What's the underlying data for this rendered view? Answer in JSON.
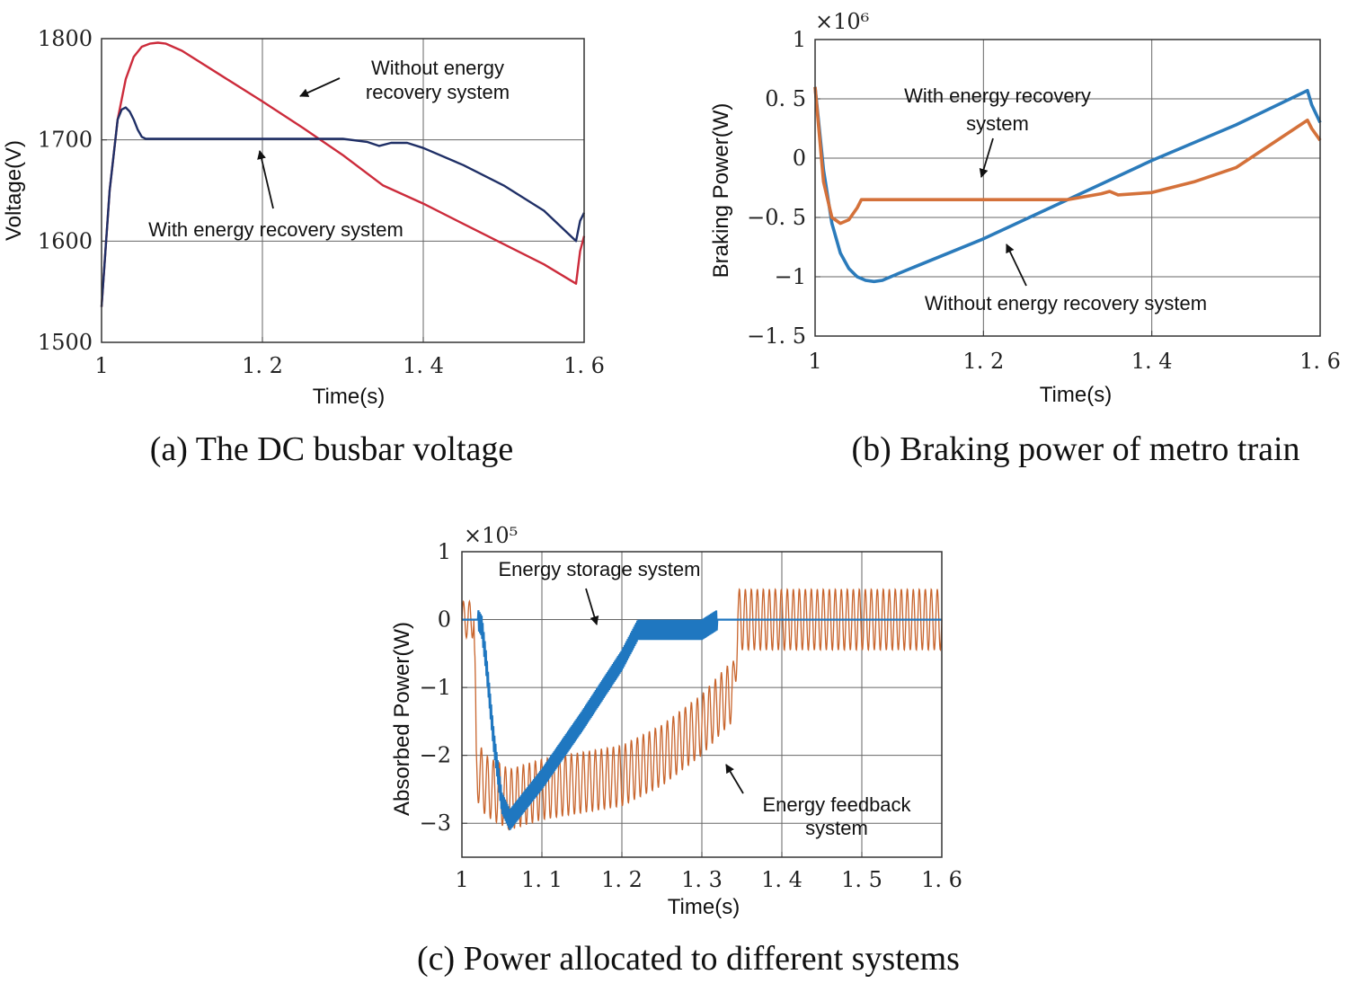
{
  "chart_data": [
    {
      "type": "line",
      "caption": "(a) The DC busbar voltage",
      "xlabel": "Time(s)",
      "ylabel": "Voltage(V)",
      "xlim": [
        1,
        1.6
      ],
      "ylim": [
        1500,
        1800
      ],
      "xticks": [
        1,
        1.2,
        1.4,
        1.6
      ],
      "xtick_labels": [
        "1",
        "1. 2",
        "1. 4",
        "1. 6"
      ],
      "yticks": [
        1500,
        1600,
        1700,
        1800
      ],
      "ytick_labels": [
        "1500",
        "1600",
        "1700",
        "1800"
      ],
      "series": [
        {
          "name": "Without energy recovery system",
          "color": "#cc2b3b",
          "x": [
            1.0,
            1.01,
            1.02,
            1.03,
            1.04,
            1.05,
            1.06,
            1.07,
            1.08,
            1.1,
            1.15,
            1.2,
            1.25,
            1.3,
            1.35,
            1.4,
            1.45,
            1.5,
            1.55,
            1.59,
            1.595,
            1.6
          ],
          "y": [
            1535,
            1650,
            1720,
            1760,
            1782,
            1792,
            1795,
            1796,
            1795,
            1788,
            1763,
            1738,
            1712,
            1685,
            1655,
            1637,
            1617,
            1597,
            1577,
            1558,
            1590,
            1605
          ]
        },
        {
          "name": "With energy recovery system",
          "color": "#1f2f66",
          "x": [
            1.0,
            1.01,
            1.02,
            1.025,
            1.03,
            1.035,
            1.04,
            1.045,
            1.05,
            1.055,
            1.1,
            1.2,
            1.3,
            1.33,
            1.345,
            1.36,
            1.38,
            1.4,
            1.45,
            1.5,
            1.55,
            1.59,
            1.595,
            1.6
          ],
          "y": [
            1535,
            1650,
            1720,
            1730,
            1732,
            1728,
            1720,
            1710,
            1703,
            1701,
            1701,
            1701,
            1701,
            1698,
            1694,
            1697,
            1697,
            1692,
            1675,
            1655,
            1630,
            1600,
            1620,
            1628
          ]
        }
      ],
      "annotations": [
        {
          "text": [
            "Without energy",
            "recovery system"
          ],
          "target_series": "Without energy recovery system"
        },
        {
          "text": [
            "With energy recovery system"
          ],
          "target_series": "With energy recovery system"
        }
      ]
    },
    {
      "type": "line",
      "caption": "(b) Braking power of metro train",
      "xlabel": "Time(s)",
      "ylabel": "Braking Power(W)",
      "scale_label": "×10⁶",
      "xlim": [
        1,
        1.6
      ],
      "ylim": [
        -1.5,
        1
      ],
      "xticks": [
        1,
        1.2,
        1.4,
        1.6
      ],
      "xtick_labels": [
        "1",
        "1. 2",
        "1. 4",
        "1. 6"
      ],
      "yticks": [
        -1.5,
        -1,
        -0.5,
        0,
        0.5,
        1
      ],
      "ytick_labels": [
        "−1. 5",
        "−1",
        "−0. 5",
        "0",
        "0. 5",
        "1"
      ],
      "series": [
        {
          "name": "Without energy recovery system",
          "color": "#2b7bbb",
          "x": [
            1.0,
            1.005,
            1.01,
            1.02,
            1.03,
            1.04,
            1.05,
            1.06,
            1.07,
            1.08,
            1.1,
            1.2,
            1.3,
            1.4,
            1.5,
            1.585,
            1.59,
            1.6
          ],
          "y": [
            0.6,
            0.25,
            -0.1,
            -0.55,
            -0.8,
            -0.93,
            -1.0,
            -1.03,
            -1.04,
            -1.03,
            -0.97,
            -0.68,
            -0.35,
            -0.02,
            0.28,
            0.57,
            0.45,
            0.3
          ]
        },
        {
          "name": "With energy recovery system",
          "color": "#d4713a",
          "x": [
            1.0,
            1.005,
            1.01,
            1.02,
            1.03,
            1.04,
            1.05,
            1.055,
            1.1,
            1.2,
            1.3,
            1.34,
            1.35,
            1.36,
            1.4,
            1.45,
            1.5,
            1.585,
            1.59,
            1.6
          ],
          "y": [
            0.6,
            0.2,
            -0.2,
            -0.5,
            -0.55,
            -0.52,
            -0.42,
            -0.35,
            -0.35,
            -0.35,
            -0.35,
            -0.3,
            -0.28,
            -0.31,
            -0.29,
            -0.2,
            -0.08,
            0.32,
            0.25,
            0.15
          ]
        }
      ],
      "annotations": [
        {
          "text": [
            "With energy recovery",
            "system"
          ],
          "target_series": "With energy recovery system"
        },
        {
          "text": [
            "Without energy recovery system"
          ],
          "target_series": "Without energy recovery system"
        }
      ]
    },
    {
      "type": "line",
      "caption": "(c) Power allocated to different systems",
      "xlabel": "Time(s)",
      "ylabel": "Absorbed Power(W)",
      "scale_label": "×10⁵",
      "xlim": [
        1,
        1.6
      ],
      "ylim": [
        -3.5,
        1
      ],
      "xticks": [
        1,
        1.1,
        1.2,
        1.3,
        1.4,
        1.5,
        1.6
      ],
      "xtick_labels": [
        "1",
        "1. 1",
        "1. 2",
        "1. 3",
        "1. 4",
        "1. 5",
        "1. 6"
      ],
      "yticks": [
        -3,
        -2,
        -1,
        0,
        1
      ],
      "ytick_labels": [
        "−3",
        "−2",
        "−1",
        "0",
        "1"
      ],
      "series": [
        {
          "name": "Energy storage system",
          "color": "#1f77c0",
          "x": [
            1.0,
            1.02,
            1.025,
            1.03,
            1.04,
            1.05,
            1.06,
            1.07,
            1.1,
            1.15,
            1.2,
            1.22,
            1.3,
            1.32,
            1.345,
            1.6
          ],
          "y": [
            0,
            0,
            -0.1,
            -0.6,
            -1.8,
            -2.7,
            -2.95,
            -2.8,
            -2.35,
            -1.5,
            -0.6,
            -0.15,
            -0.15,
            0,
            0,
            0
          ],
          "band_width": 0.15
        },
        {
          "name": "Energy feedback system",
          "color": "#c8642c",
          "x": [
            1.0,
            1.015,
            1.018,
            1.03,
            1.06,
            1.1,
            1.15,
            1.2,
            1.25,
            1.3,
            1.33,
            1.34,
            1.345,
            1.6
          ],
          "y": [
            0,
            0,
            -2.2,
            -2.45,
            -2.65,
            -2.5,
            -2.4,
            -2.3,
            -2.0,
            -1.55,
            -1.15,
            -1.05,
            0,
            0
          ],
          "oscillation_amplitude": 0.45
        }
      ],
      "annotations": [
        {
          "text": [
            "Energy storage system"
          ],
          "target_series": "Energy storage system"
        },
        {
          "text": [
            "Energy feedback",
            "system"
          ],
          "target_series": "Energy feedback system"
        }
      ]
    }
  ]
}
